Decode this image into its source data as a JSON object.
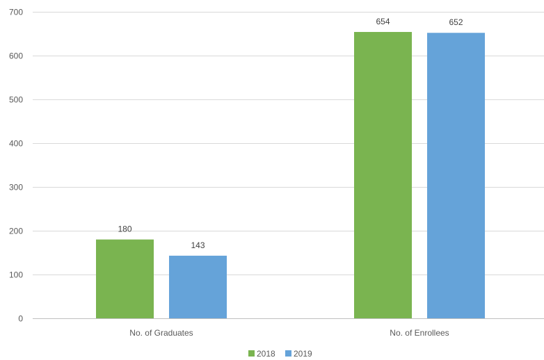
{
  "chart_data": {
    "type": "bar",
    "categories": [
      "No. of Graduates",
      "No. of Enrollees"
    ],
    "series": [
      {
        "name": "2018",
        "values": [
          180,
          654
        ],
        "color": "#7ab450"
      },
      {
        "name": "2019",
        "values": [
          143,
          652
        ],
        "color": "#65a3d9"
      }
    ],
    "ylim": [
      0,
      700
    ],
    "yticks": [
      0,
      100,
      200,
      300,
      400,
      500,
      600,
      700
    ],
    "grid": true,
    "legend": "bottom",
    "data_labels": true
  }
}
